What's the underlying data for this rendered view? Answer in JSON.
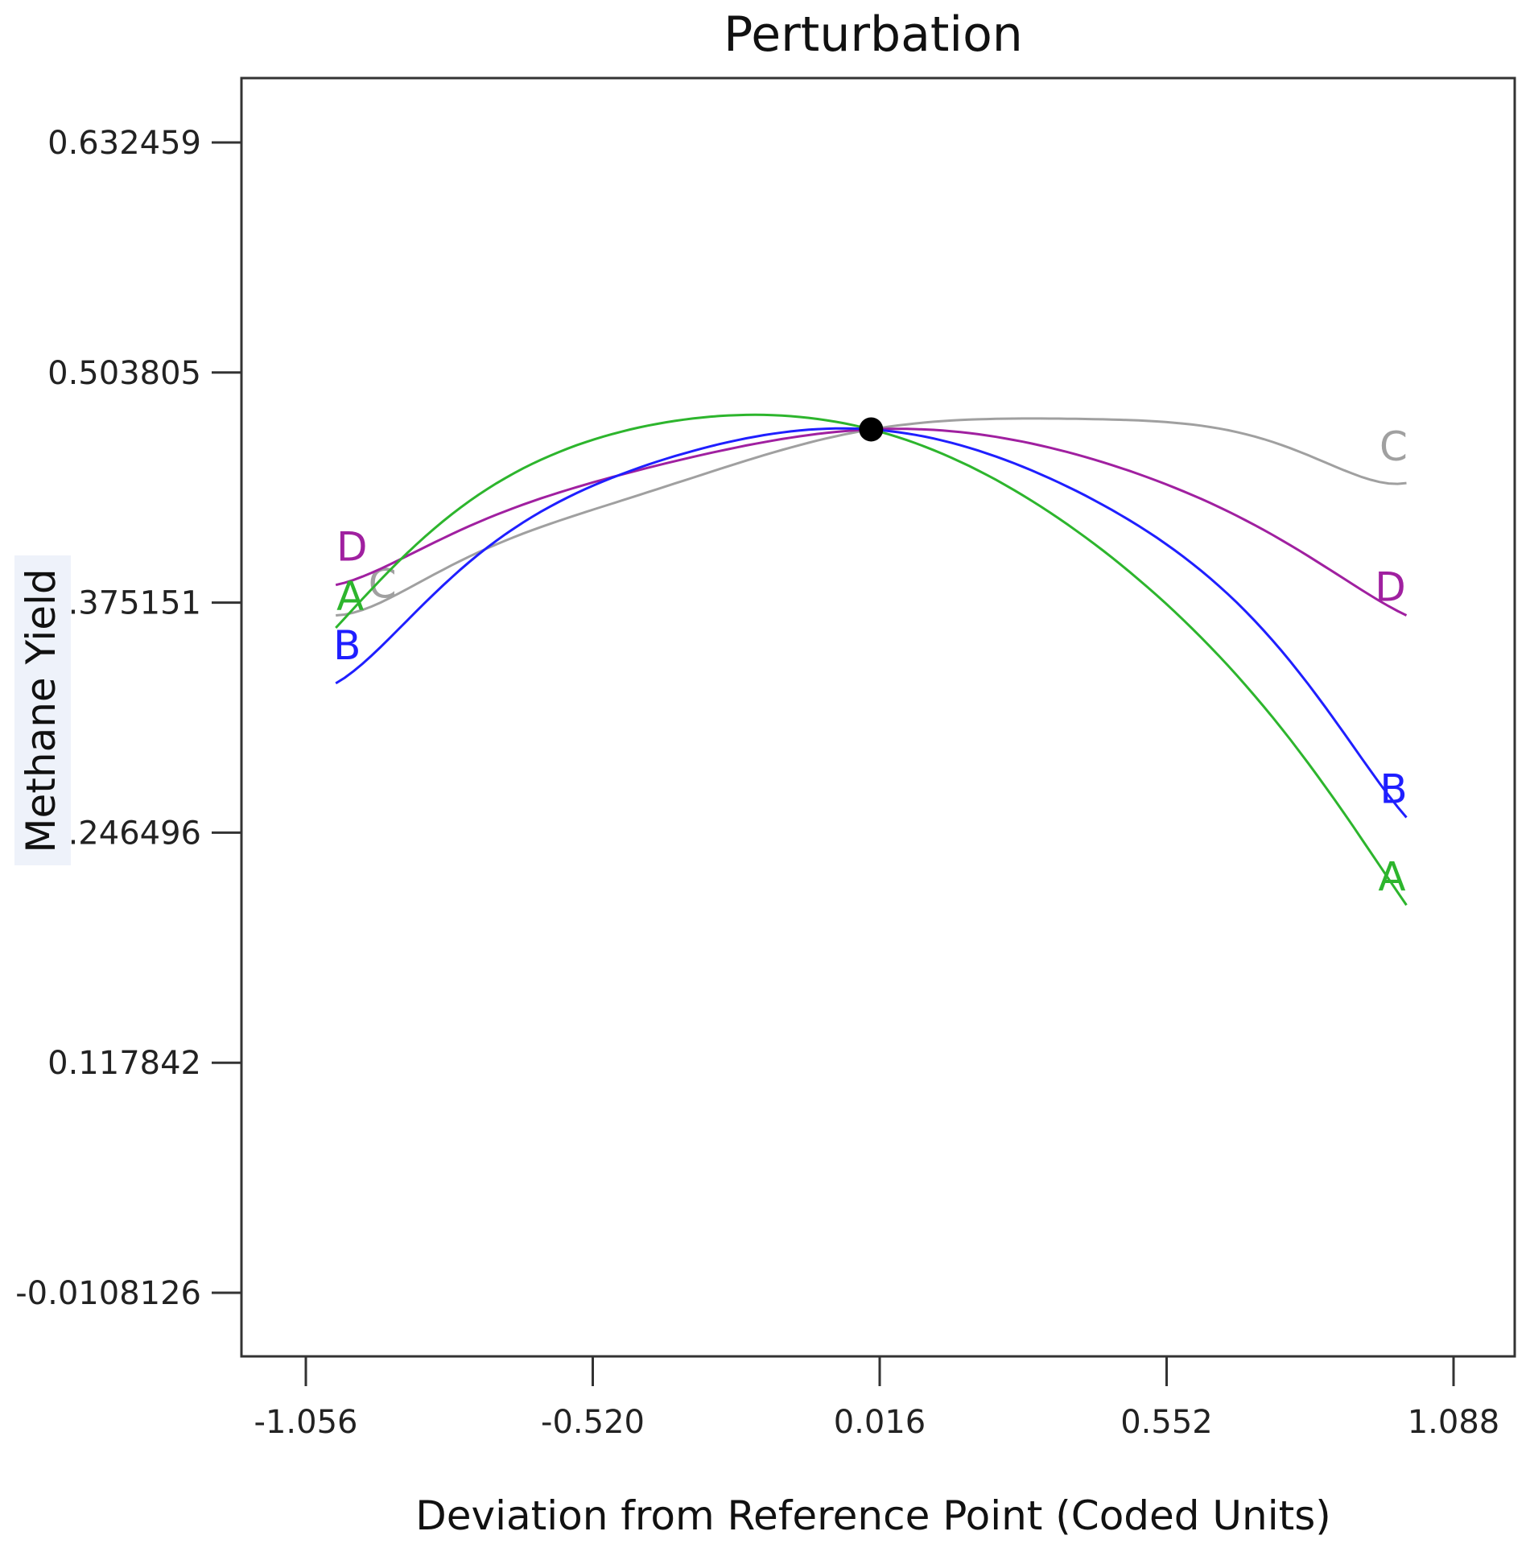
{
  "chart_data": {
    "type": "line",
    "title": "Perturbation",
    "xlabel": "Deviation from Reference Point (Coded Units)",
    "ylabel": "Methane Yield",
    "xlim": [
      -1.17,
      1.22
    ],
    "ylim": [
      -0.0108126,
      0.632459
    ],
    "x_ticks": [
      "-1.056",
      "-0.520",
      "0.016",
      "0.552",
      "1.088"
    ],
    "y_ticks": [
      "0.632459",
      "0.503805",
      "0.375151",
      "0.246496",
      "0.117842",
      "-0.0108126"
    ],
    "reference_point": {
      "x": 0,
      "y": 0.472
    },
    "series": [
      {
        "name": "A",
        "color": "#2db52d",
        "points": [
          [
            -1,
            0.361
          ],
          [
            -0.75,
            0.432
          ],
          [
            -0.5,
            0.468
          ],
          [
            -0.25,
            0.48
          ],
          [
            0,
            0.472
          ],
          [
            0.25,
            0.441
          ],
          [
            0.5,
            0.388
          ],
          [
            0.75,
            0.311
          ],
          [
            1,
            0.206
          ]
        ]
      },
      {
        "name": "B",
        "color": "#1f1fff",
        "points": [
          [
            -1,
            0.33
          ],
          [
            -0.75,
            0.398
          ],
          [
            -0.5,
            0.443
          ],
          [
            -0.25,
            0.466
          ],
          [
            0,
            0.472
          ],
          [
            0.25,
            0.455
          ],
          [
            0.5,
            0.418
          ],
          [
            0.75,
            0.354
          ],
          [
            1,
            0.255
          ]
        ]
      },
      {
        "name": "C",
        "color": "#a0a0a0",
        "points": [
          [
            -1,
            0.368
          ],
          [
            -0.75,
            0.401
          ],
          [
            -0.5,
            0.429
          ],
          [
            -0.25,
            0.453
          ],
          [
            0,
            0.472
          ],
          [
            0.25,
            0.478
          ],
          [
            0.5,
            0.477
          ],
          [
            0.75,
            0.465
          ],
          [
            1,
            0.442
          ]
        ]
      },
      {
        "name": "D",
        "color": "#a020a0",
        "points": [
          [
            -1,
            0.385
          ],
          [
            -0.75,
            0.418
          ],
          [
            -0.5,
            0.444
          ],
          [
            -0.25,
            0.462
          ],
          [
            0,
            0.472
          ],
          [
            0.25,
            0.467
          ],
          [
            0.5,
            0.447
          ],
          [
            0.75,
            0.413
          ],
          [
            1,
            0.368
          ]
        ]
      }
    ],
    "legend": "none",
    "grid": false
  }
}
